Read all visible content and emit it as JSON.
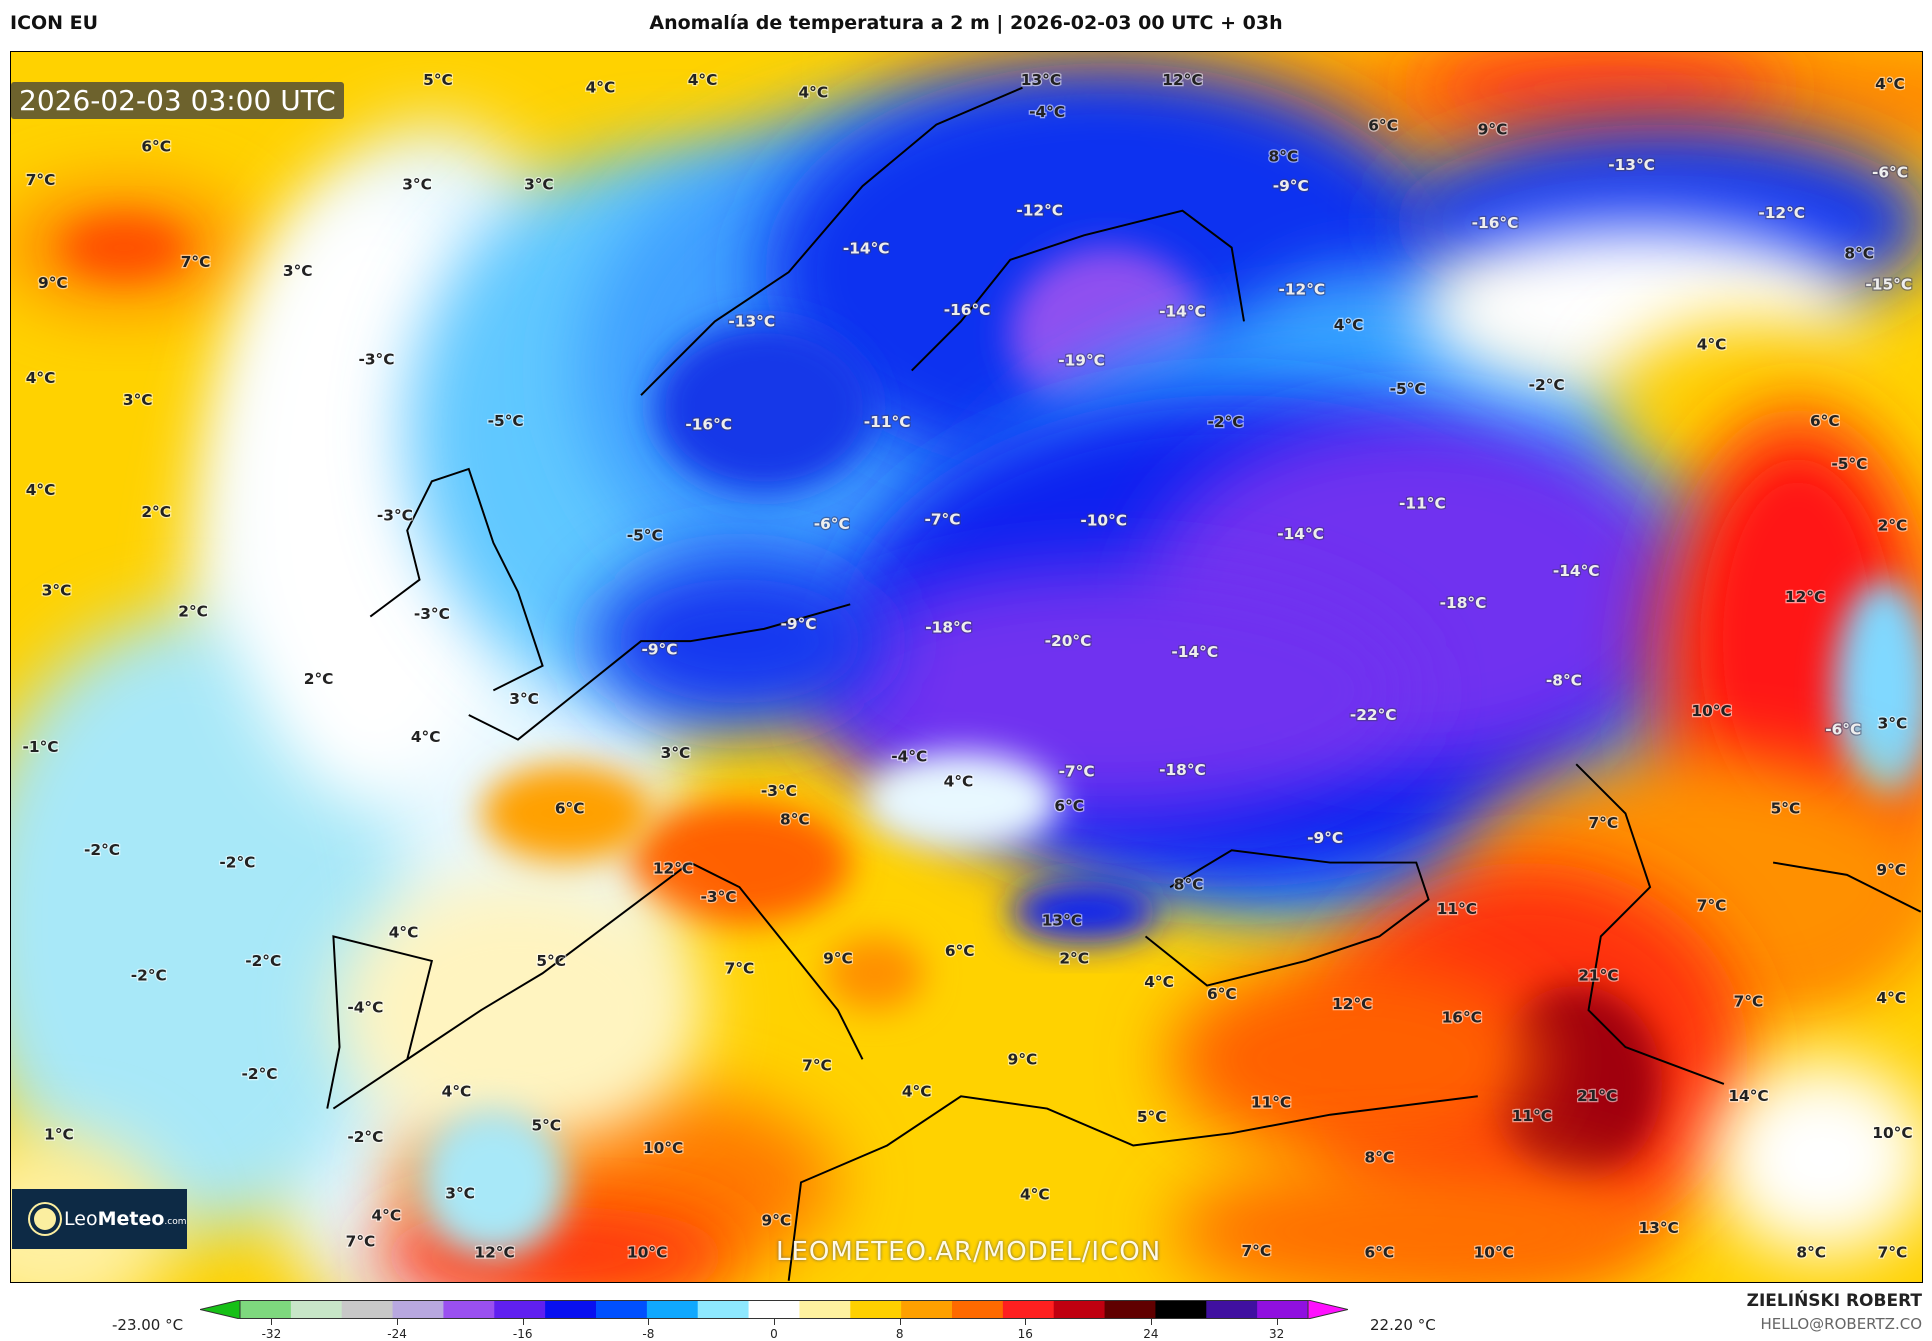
{
  "header": {
    "model": "ICON EU",
    "title": "Anomalía de temperatura a 2 m | 2026-02-03 00 UTC + 03h"
  },
  "map": {
    "timestamp": "2026-02-03 03:00 UTC",
    "watermark": "LEOMETEO.AR/MODEL/ICON",
    "logo": {
      "name": "Leo",
      "bold": "Meteo",
      "suffix": ".com"
    },
    "labels": [
      "5°C",
      "4°C",
      "4°C",
      "4°C",
      "13°C",
      "12°C",
      "4°C",
      "6°C",
      "7°C",
      "3°C",
      "3°C",
      "-4°C",
      "6°C",
      "9°C",
      "8°C",
      "-9°C",
      "-13°C",
      "-6°C",
      "7°C",
      "9°C",
      "3°C",
      "-14°C",
      "-12°C",
      "-16°C",
      "-12°C",
      "8°C",
      "-15°C",
      "-13°C",
      "-16°C",
      "-14°C",
      "-12°C",
      "4°C",
      "-3°C",
      "4°C",
      "4°C",
      "-19°C",
      "-5°C",
      "-2°C",
      "3°C",
      "-5°C",
      "-16°C",
      "-11°C",
      "-2°C",
      "6°C",
      "-5°C",
      "4°C",
      "2°C",
      "-11°C",
      "-3°C",
      "-5°C",
      "-6°C",
      "-7°C",
      "-10°C",
      "-14°C",
      "2°C",
      "-14°C",
      "3°C",
      "2°C",
      "-3°C",
      "-18°C",
      "12°C",
      "-9°C",
      "-9°C",
      "-18°C",
      "-20°C",
      "-14°C",
      "2°C",
      "3°C",
      "-8°C",
      "-22°C",
      "10°C",
      "-6°C",
      "3°C",
      "-1°C",
      "4°C",
      "3°C",
      "-4°C",
      "4°C",
      "-3°C",
      "-7°C",
      "-18°C",
      "6°C",
      "8°C",
      "6°C",
      "5°C",
      "-2°C",
      "-2°C",
      "7°C",
      "-9°C",
      "12°C",
      "8°C",
      "9°C",
      "-3°C",
      "13°C",
      "11°C",
      "7°C",
      "4°C",
      "-2°C",
      "5°C",
      "9°C",
      "6°C",
      "2°C",
      "21°C",
      "-2°C",
      "7°C",
      "6°C",
      "4°C",
      "-4°C",
      "12°C",
      "16°C",
      "7°C",
      "4°C",
      "-2°C",
      "7°C",
      "9°C",
      "4°C",
      "4°C",
      "21°C",
      "14°C",
      "11°C",
      "5°C",
      "11°C",
      "1°C",
      "5°C",
      "-2°C",
      "10°C",
      "10°C",
      "8°C",
      "3°C",
      "4°C",
      "4°C",
      "7°C",
      "9°C",
      "13°C",
      "12°C",
      "10°C",
      "7°C",
      "6°C",
      "10°C",
      "8°C",
      "7°C"
    ]
  },
  "colorbar": {
    "min_label": "-23.00 °C",
    "max_label": "22.20 °C",
    "ticks": [
      "-32",
      "-24",
      "-16",
      "-8",
      "0",
      "8",
      "16",
      "24",
      "32"
    ],
    "range": [
      -34,
      34
    ],
    "colors": [
      "#16c016",
      "#7ed87e",
      "#c8e6c8",
      "#c8c8c8",
      "#b8a8e0",
      "#9a50f0",
      "#6020f0",
      "#0810f0",
      "#0050ff",
      "#10a8ff",
      "#8ee8ff",
      "#ffffff",
      "#fff2a0",
      "#ffd000",
      "#ffa000",
      "#ff6a00",
      "#ff2020",
      "#c00010",
      "#600000",
      "#000000",
      "#4010a0",
      "#9010e0",
      "#ff10ff"
    ]
  },
  "credits": {
    "author": "ZIELIŃSKI ROBERT",
    "email": "HELLO@ROBERTZ.CO"
  }
}
